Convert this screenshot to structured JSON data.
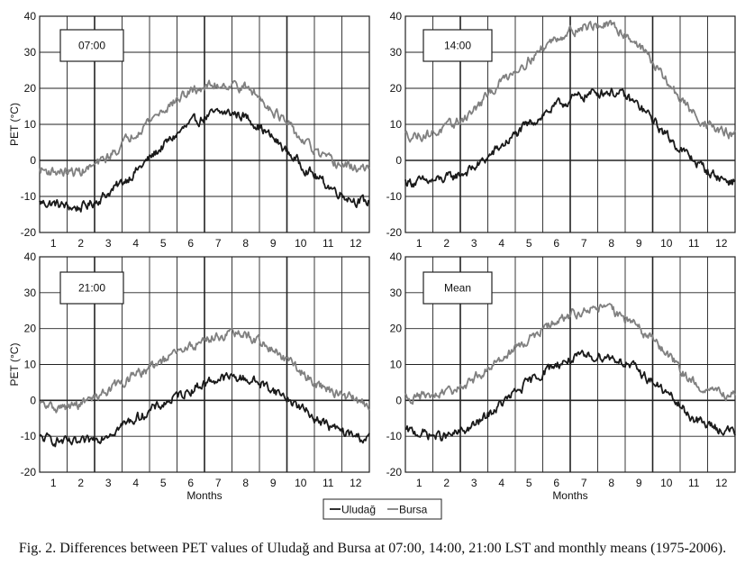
{
  "caption": "Fig. 2. Differences between PET values of Uludağ and Bursa at 07:00, 14:00, 21:00 LST and monthly means (1975-2006).",
  "legend": [
    "Uludağ",
    "Bursa"
  ],
  "colors": {
    "Uludağ": "#1a1a1a",
    "Bursa": "#808080"
  },
  "chart_data": [
    {
      "type": "line",
      "title": "07:00",
      "xlabel": "",
      "ylabel": "PET (°C)",
      "x": [
        1,
        2,
        3,
        4,
        5,
        6,
        7,
        8,
        9,
        10,
        11,
        12
      ],
      "xlim": [
        0.5,
        12.5
      ],
      "ylim": [
        -20,
        40
      ],
      "yticks": [
        -20,
        -10,
        0,
        10,
        20,
        30,
        40
      ],
      "series": [
        {
          "name": "Uludağ",
          "values": [
            -12,
            -13,
            -9,
            -3,
            4,
            10,
            13,
            12,
            6,
            -1,
            -7,
            -11
          ]
        },
        {
          "name": "Bursa",
          "values": [
            -3,
            -3,
            1,
            8,
            14,
            19,
            21,
            20,
            14,
            6,
            0,
            -2
          ]
        }
      ]
    },
    {
      "type": "line",
      "title": "14:00",
      "xlabel": "",
      "ylabel": "",
      "x": [
        1,
        2,
        3,
        4,
        5,
        6,
        7,
        8,
        9,
        10,
        11,
        12
      ],
      "xlim": [
        0.5,
        12.5
      ],
      "ylim": [
        -20,
        40
      ],
      "yticks": [
        -20,
        -10,
        0,
        10,
        20,
        30,
        40
      ],
      "series": [
        {
          "name": "Uludağ",
          "values": [
            -6,
            -5,
            -2,
            4,
            10,
            15,
            18,
            19,
            15,
            7,
            0,
            -5
          ]
        },
        {
          "name": "Bursa",
          "values": [
            7,
            9,
            14,
            22,
            28,
            34,
            37,
            37,
            32,
            22,
            13,
            8
          ]
        }
      ]
    },
    {
      "type": "line",
      "title": "21:00",
      "xlabel": "Months",
      "ylabel": "PET (°C)",
      "x": [
        1,
        2,
        3,
        4,
        5,
        6,
        7,
        8,
        9,
        10,
        11,
        12
      ],
      "xlim": [
        0.5,
        12.5
      ],
      "ylim": [
        -20,
        40
      ],
      "yticks": [
        -20,
        -10,
        0,
        10,
        20,
        30,
        40
      ],
      "series": [
        {
          "name": "Uludağ",
          "values": [
            -11,
            -12,
            -9,
            -5,
            -1,
            3,
            6,
            6,
            3,
            -2,
            -7,
            -10
          ]
        },
        {
          "name": "Bursa",
          "values": [
            -2,
            -1,
            3,
            7,
            11,
            15,
            18,
            18,
            14,
            8,
            3,
            0
          ]
        }
      ]
    },
    {
      "type": "line",
      "title": "Mean",
      "xlabel": "Months",
      "ylabel": "",
      "x": [
        1,
        2,
        3,
        4,
        5,
        6,
        7,
        8,
        9,
        10,
        11,
        12
      ],
      "xlim": [
        0.5,
        12.5
      ],
      "ylim": [
        -20,
        40
      ],
      "yticks": [
        -20,
        -10,
        0,
        10,
        20,
        30,
        40
      ],
      "series": [
        {
          "name": "Uludağ",
          "values": [
            -9,
            -10,
            -7,
            -1,
            5,
            10,
            12,
            12,
            8,
            2,
            -5,
            -8
          ]
        },
        {
          "name": "Bursa",
          "values": [
            1,
            2,
            6,
            12,
            17,
            22,
            25,
            25,
            20,
            13,
            5,
            2
          ]
        }
      ]
    }
  ]
}
